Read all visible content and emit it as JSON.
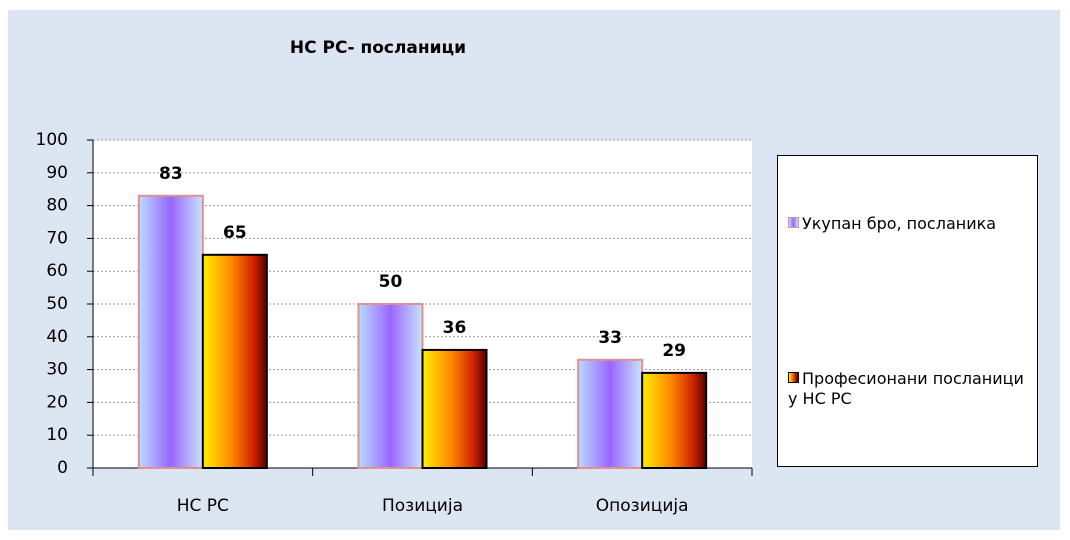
{
  "chart_data": {
    "type": "bar",
    "title": "НС РС- посланици",
    "categories": [
      "НС РС",
      "Позиција",
      "Опозиција"
    ],
    "series": [
      {
        "name": "Укупан бро, посланика",
        "color": "#9966ff",
        "values": [
          83,
          50,
          33
        ]
      },
      {
        "name": "Професионани посланици у НС РС",
        "color": "#cc2200",
        "values": [
          65,
          36,
          29
        ]
      }
    ],
    "ylim": [
      0,
      100
    ],
    "yticks": [
      0,
      10,
      20,
      30,
      40,
      50,
      60,
      70,
      80,
      90,
      100
    ],
    "grid": true,
    "legend": "right"
  }
}
